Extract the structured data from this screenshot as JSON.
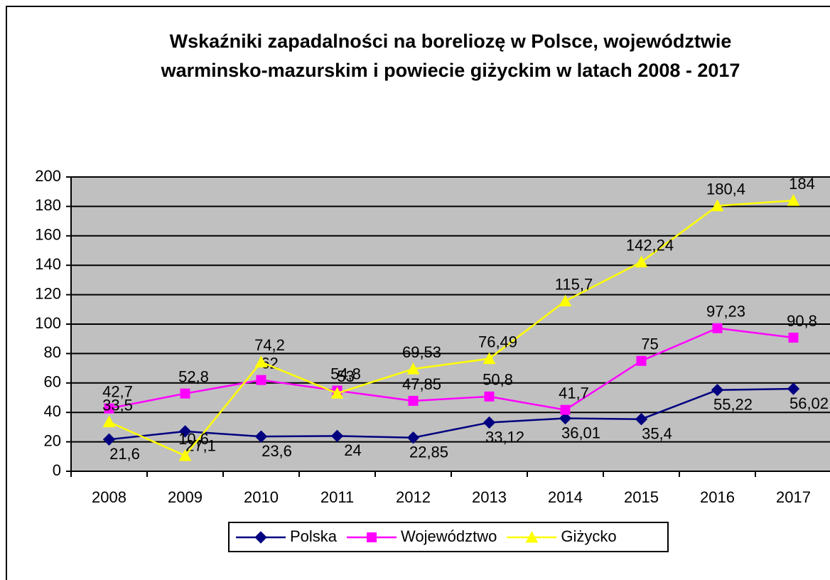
{
  "chart_data": {
    "type": "line",
    "title": "Wskaźniki zapadalności na boreliozę w Polsce, województwie warminsko-mazurskim i powiecie giżyckim w latach 2008 - 2017",
    "categories": [
      "2008",
      "2009",
      "2010",
      "2011",
      "2012",
      "2013",
      "2014",
      "2015",
      "2016",
      "2017"
    ],
    "series": [
      {
        "name": "Polska",
        "color": "#000080",
        "marker": "diamond",
        "values": [
          21.6,
          27.1,
          23.6,
          24,
          22.85,
          33.12,
          36.01,
          35.4,
          55.22,
          56.02
        ],
        "value_labels": [
          "21,6",
          "27,1",
          "23,6",
          "24",
          "22,85",
          "33,12",
          "36,01",
          "35,4",
          "55,22",
          "56,02"
        ]
      },
      {
        "name": "Województwo",
        "color": "#ff00ff",
        "marker": "square",
        "values": [
          42.7,
          52.8,
          62,
          54.8,
          47.85,
          50.8,
          41.7,
          75,
          97.23,
          90.8
        ],
        "value_labels": [
          "42,7",
          "52,8",
          "62",
          "54,8",
          "47,85",
          "50,8",
          "41,7",
          "75",
          "97,23",
          "90,8"
        ]
      },
      {
        "name": "Giżycko",
        "color": "#ffff00",
        "marker": "triangle",
        "values": [
          33.5,
          10.6,
          74.2,
          53,
          69.53,
          76.49,
          115.7,
          142.24,
          180.4,
          184
        ],
        "value_labels": [
          "33,5",
          "10,6",
          "74,2",
          "53",
          "69,53",
          "76,49",
          "115,7",
          "142,24",
          "180,4",
          "184"
        ]
      }
    ],
    "ylim": [
      0,
      200
    ],
    "yticks": [
      0,
      20,
      40,
      60,
      80,
      100,
      120,
      140,
      160,
      180,
      200
    ],
    "grid": true,
    "legend": "bottom"
  }
}
